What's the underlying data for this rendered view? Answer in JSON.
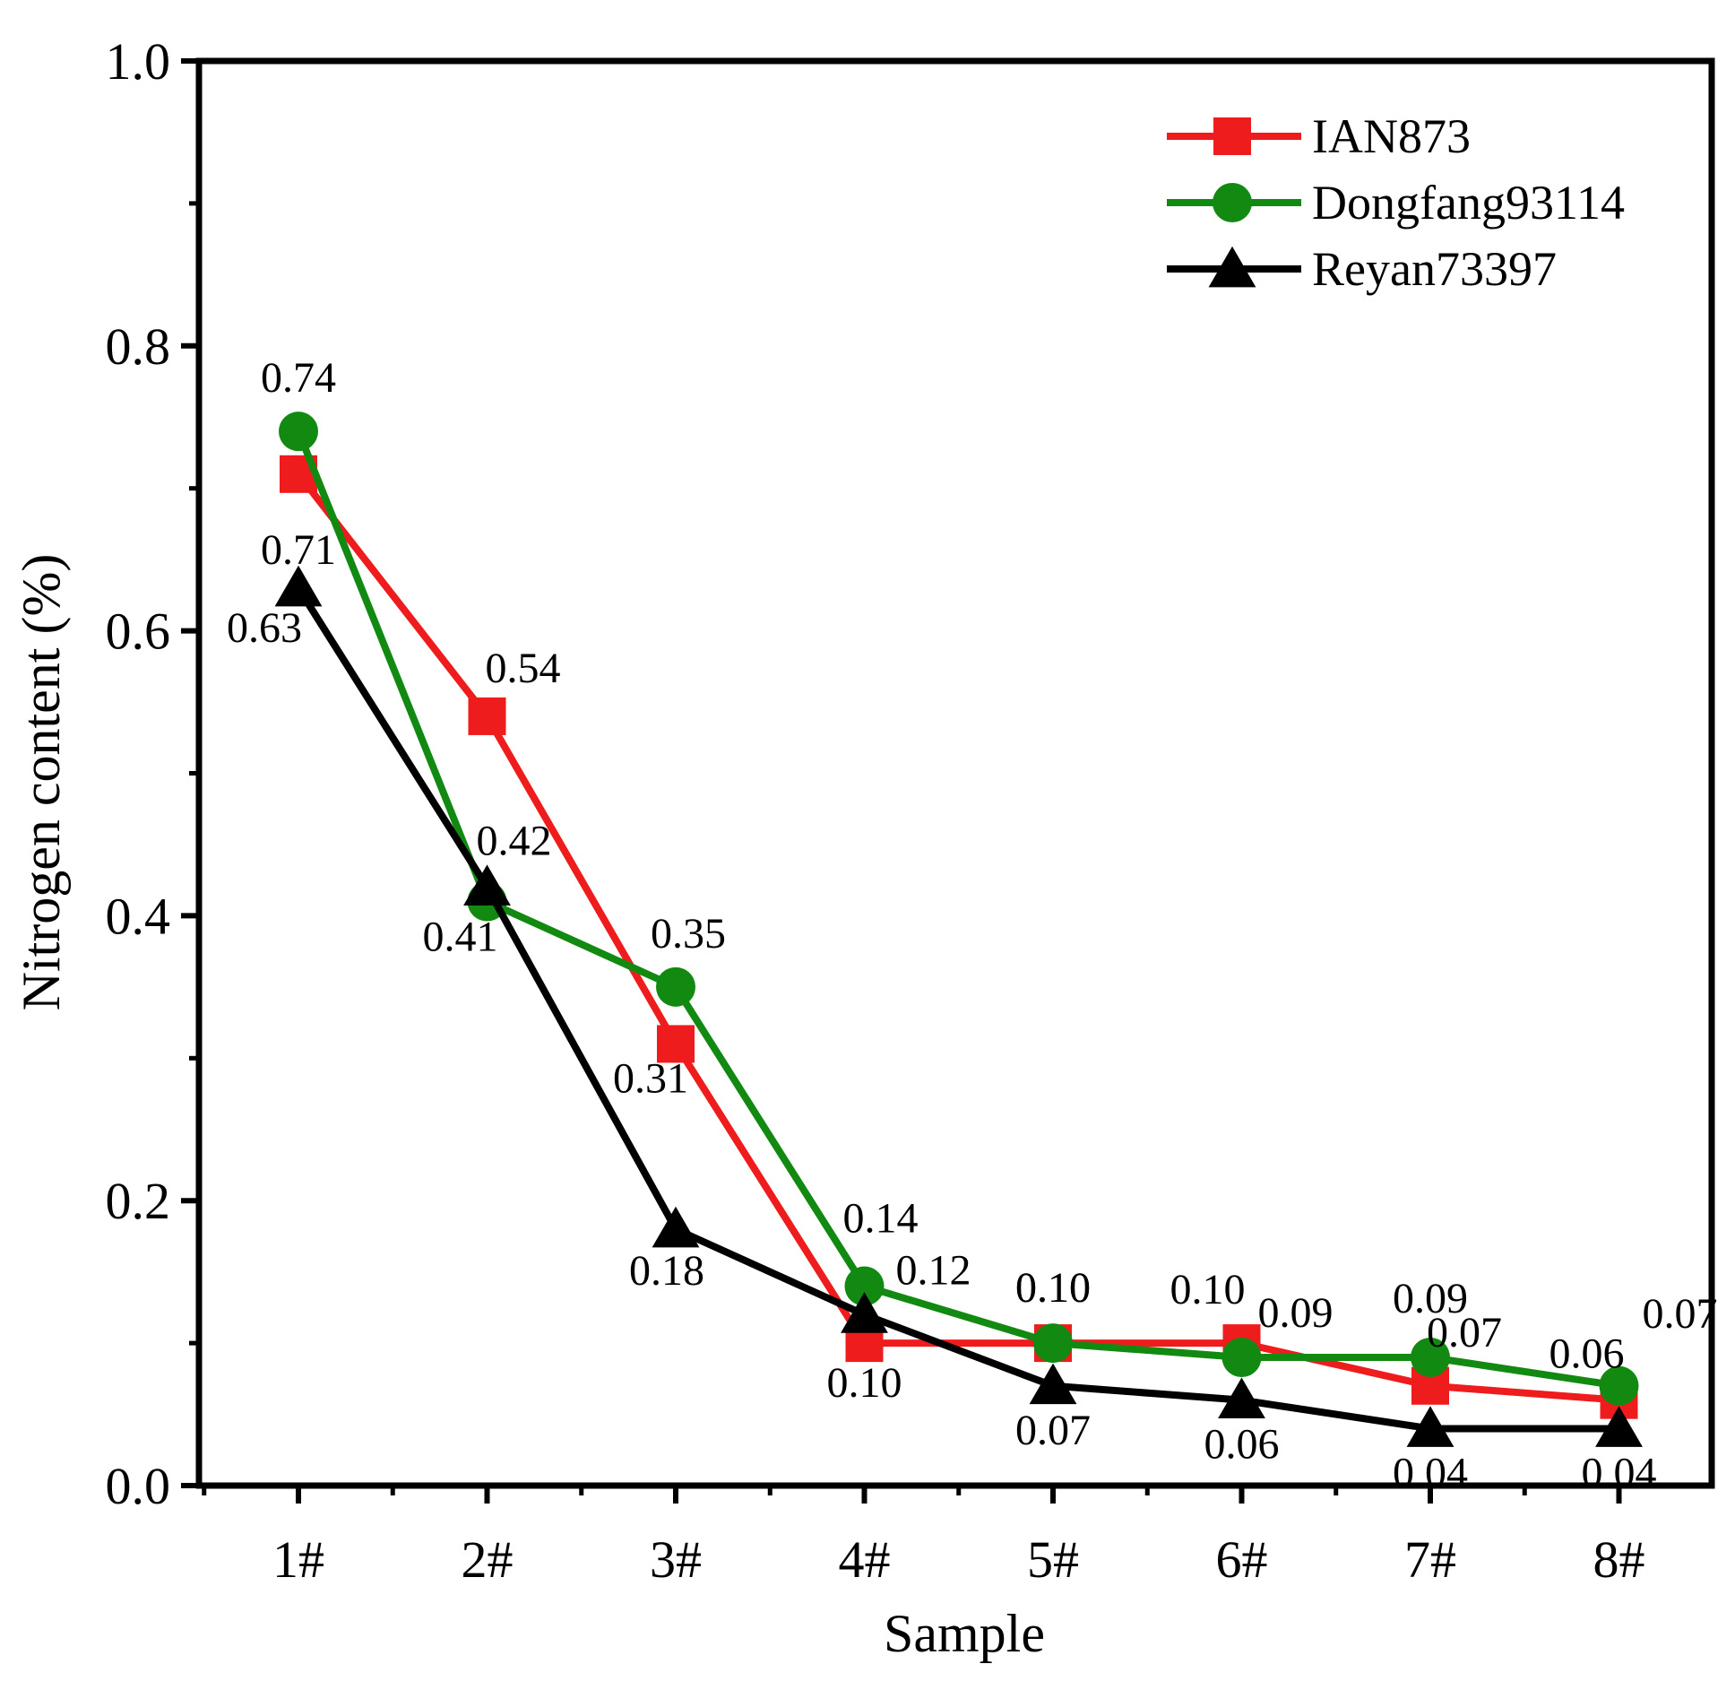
{
  "chart_data": {
    "type": "line",
    "title": "",
    "xlabel": "Sample",
    "ylabel": "Nitrogen content (%)",
    "categories": [
      "1#",
      "2#",
      "3#",
      "4#",
      "5#",
      "6#",
      "7#",
      "8#"
    ],
    "ylim": [
      0.0,
      1.0
    ],
    "yticks": [
      "0.0",
      "0.2",
      "0.4",
      "0.6",
      "0.8",
      "1.0"
    ],
    "grid": false,
    "legend_position": "top-right",
    "series": [
      {
        "name": "IAN873",
        "color": "#ee1c1c",
        "marker": "square",
        "values": [
          0.71,
          0.54,
          0.31,
          0.1,
          0.1,
          0.1,
          0.07,
          0.06
        ],
        "labels": [
          "0.71",
          "0.54",
          "0.31",
          "0.10",
          "0.10",
          "0.10",
          "0.07",
          "0.06"
        ]
      },
      {
        "name": "Dongfang93114",
        "color": "#128a12",
        "marker": "circle",
        "values": [
          0.74,
          0.41,
          0.35,
          0.14,
          0.1,
          0.09,
          0.09,
          0.07
        ],
        "labels": [
          "0.74",
          "0.41",
          "0.35",
          "0.14",
          "0.10",
          "0.09",
          "0.09",
          "0.07"
        ]
      },
      {
        "name": "Reyan73397",
        "color": "#000000",
        "marker": "triangle",
        "values": [
          0.63,
          0.42,
          0.18,
          0.12,
          0.07,
          0.06,
          0.04,
          0.04
        ],
        "labels": [
          "0.63",
          "0.42",
          "0.18",
          "0.12",
          "0.07",
          "0.06",
          "0.04",
          "0.04"
        ]
      }
    ]
  }
}
